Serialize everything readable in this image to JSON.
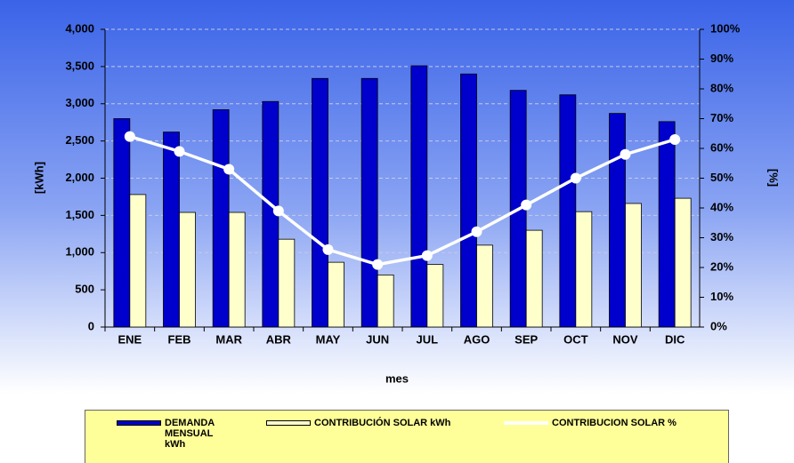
{
  "chart_data": {
    "type": "bar_line",
    "x_label": "mes",
    "y_label": "[kWh]",
    "y2_label": "[%]",
    "categories": [
      "ENE",
      "FEB",
      "MAR",
      "ABR",
      "MAY",
      "JUN",
      "JUL",
      "AGO",
      "SEP",
      "OCT",
      "NOV",
      "DIC"
    ],
    "series": [
      {
        "name": "DEMANDA MENSUAL kWh",
        "type": "bar",
        "color": "#0000cc",
        "values": [
          2800,
          2620,
          2920,
          3030,
          3340,
          3340,
          3510,
          3400,
          3180,
          3120,
          2870,
          2760
        ]
      },
      {
        "name": "CONTRIBUCIÓN SOLAR kWh",
        "type": "bar",
        "color": "#ffffcc",
        "values": [
          1780,
          1540,
          1540,
          1180,
          870,
          700,
          840,
          1100,
          1300,
          1550,
          1660,
          1730
        ]
      },
      {
        "name": "CONTRIBUCION SOLAR %",
        "type": "line",
        "axis": "y2",
        "color": "#ffffff",
        "values": [
          64,
          59,
          53,
          39,
          26,
          21,
          24,
          32,
          41,
          50,
          58,
          63
        ]
      }
    ],
    "ylim": [
      0,
      4000
    ],
    "yticks": [
      0,
      500,
      {
        "value": 1000,
        "label": "1,000"
      },
      {
        "value": 1500,
        "label": "1,500"
      },
      {
        "value": 2000,
        "label": "2,000"
      },
      {
        "value": 2500,
        "label": "2,500"
      },
      {
        "value": 3000,
        "label": "3,000"
      },
      {
        "value": 3500,
        "label": "3,500"
      },
      {
        "value": 4000,
        "label": "4,000"
      }
    ],
    "y2lim": [
      0,
      100
    ],
    "y2ticks": [
      {
        "value": 0,
        "label": "0%"
      },
      {
        "value": 10,
        "label": "10%"
      },
      {
        "value": 20,
        "label": "20%"
      },
      {
        "value": 30,
        "label": "30%"
      },
      {
        "value": 40,
        "label": "40%"
      },
      {
        "value": 50,
        "label": "50%"
      },
      {
        "value": 60,
        "label": "60%"
      },
      {
        "value": 70,
        "label": "70%"
      },
      {
        "value": 80,
        "label": "80%"
      },
      {
        "value": 90,
        "label": "90%"
      },
      {
        "value": 100,
        "label": "100%"
      }
    ],
    "grid": true
  }
}
